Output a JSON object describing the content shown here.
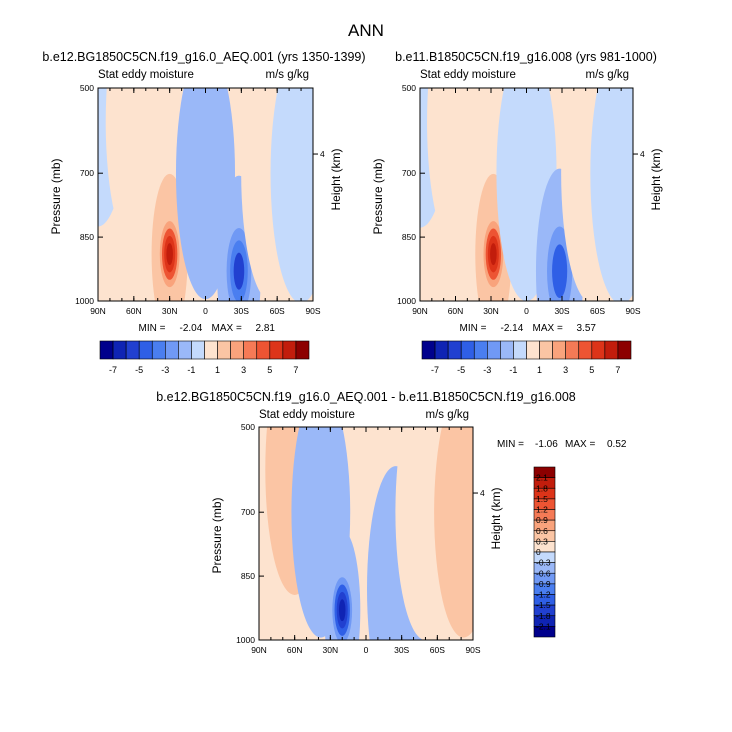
{
  "figure_title": "ANN",
  "colors": {
    "blue_scale": [
      "#00008c",
      "#0f24b4",
      "#2140d0",
      "#2f5fe6",
      "#4a7ef0",
      "#7099f5",
      "#9ab8f8",
      "#c4dafc"
    ],
    "near_zero": "#eff3fb",
    "red_scale": [
      "#fde3cf",
      "#fbc5a4",
      "#f9a37c",
      "#f57a56",
      "#ed5433",
      "#dd3419",
      "#c21d0c",
      "#8c0000"
    ]
  },
  "chart_data": [
    {
      "type": "heatmap",
      "plot_type": "latitude-pressure contour",
      "title": "b.e12.BG1850C5CN.f19_g16.0_AEQ.001 (yrs 1350-1399)",
      "left_label": "Stat eddy moisture",
      "right_label": "m/s g/kg",
      "ylabel": "Pressure (mb)",
      "ylabel_right": "Height (km)",
      "x_ticks": [
        "90N",
        "60N",
        "30N",
        "0",
        "30S",
        "60S",
        "90S"
      ],
      "y_ticks": [
        "500",
        "700",
        "850",
        "1000"
      ],
      "y_right_ticks": [
        "4"
      ],
      "xlim": [
        90,
        -90
      ],
      "ylim": [
        1000,
        500
      ],
      "min": -2.04,
      "max": 2.81,
      "min_label": "MIN =",
      "max_label": "MAX =",
      "min_text": "-2.04",
      "max_text": "2.81",
      "colorbar_labels": [
        "-7",
        "-5",
        "-3",
        "-1",
        "1",
        "3",
        "5",
        "7"
      ],
      "features": [
        {
          "lat": 90,
          "pressure": 520,
          "value": -0.3
        },
        {
          "lat": 58,
          "pressure": 580,
          "value": 0.3
        },
        {
          "lat": 30,
          "pressure": 890,
          "value": 2.81
        },
        {
          "lat": 0,
          "pressure": 700,
          "value": -0.5
        },
        {
          "lat": -28,
          "pressure": 930,
          "value": -2.04
        },
        {
          "lat": -55,
          "pressure": 700,
          "value": 0.4
        },
        {
          "lat": -80,
          "pressure": 700,
          "value": -0.3
        }
      ]
    },
    {
      "type": "heatmap",
      "plot_type": "latitude-pressure contour",
      "title": "b.e11.B1850C5CN.f19_g16.008 (yrs 981-1000)",
      "left_label": "Stat eddy moisture",
      "right_label": "m/s g/kg",
      "ylabel": "Pressure (mb)",
      "ylabel_right": "Height (km)",
      "x_ticks": [
        "90N",
        "60N",
        "30N",
        "0",
        "30S",
        "60S",
        "90S"
      ],
      "y_ticks": [
        "500",
        "700",
        "850",
        "1000"
      ],
      "y_right_ticks": [
        "4"
      ],
      "xlim": [
        90,
        -90
      ],
      "ylim": [
        1000,
        500
      ],
      "min": -2.14,
      "max": 3.57,
      "min_label": "MIN =",
      "max_label": "MAX =",
      "min_text": "-2.14",
      "max_text": "3.57",
      "colorbar_labels": [
        "-7",
        "-5",
        "-3",
        "-1",
        "1",
        "3",
        "5",
        "7"
      ],
      "features": [
        {
          "lat": 90,
          "pressure": 520,
          "value": -0.3
        },
        {
          "lat": 58,
          "pressure": 580,
          "value": 0.3
        },
        {
          "lat": 28,
          "pressure": 890,
          "value": 3.57
        },
        {
          "lat": 0,
          "pressure": 700,
          "value": -0.5
        },
        {
          "lat": -28,
          "pressure": 930,
          "value": -2.14
        },
        {
          "lat": -55,
          "pressure": 700,
          "value": 0.4
        },
        {
          "lat": -80,
          "pressure": 700,
          "value": -0.3
        }
      ]
    },
    {
      "type": "heatmap",
      "plot_type": "latitude-pressure contour (difference)",
      "title": "b.e12.BG1850C5CN.f19_g16.0_AEQ.001 - b.e11.B1850C5CN.f19_g16.008",
      "left_label": "Stat eddy moisture",
      "right_label": "m/s g/kg",
      "ylabel": "Pressure (mb)",
      "ylabel_right": "Height (km)",
      "x_ticks": [
        "90N",
        "60N",
        "30N",
        "0",
        "30S",
        "60S",
        "90S"
      ],
      "y_ticks": [
        "500",
        "700",
        "850",
        "1000"
      ],
      "y_right_ticks": [
        "4"
      ],
      "xlim": [
        90,
        -90
      ],
      "ylim": [
        1000,
        500
      ],
      "min": -1.06,
      "max": 0.52,
      "min_label": "MIN =",
      "max_label": "MAX =",
      "min_text": "-1.06",
      "max_text": "0.52",
      "colorbar_labels": [
        "2.1",
        "1.8",
        "1.5",
        "1.2",
        "0.9",
        "0.6",
        "0.3",
        "0",
        "-0.3",
        "-0.6",
        "-0.9",
        "-1.2",
        "-1.5",
        "-1.8",
        "-2.1"
      ],
      "features": [
        {
          "lat": 60,
          "pressure": 600,
          "value": 0.2
        },
        {
          "lat": 38,
          "pressure": 700,
          "value": -0.2
        },
        {
          "lat": 20,
          "pressure": 930,
          "value": -1.06
        },
        {
          "lat": -25,
          "pressure": 880,
          "value": -0.25
        },
        {
          "lat": -50,
          "pressure": 700,
          "value": 0.15
        },
        {
          "lat": -82,
          "pressure": 700,
          "value": 0.2
        }
      ]
    }
  ]
}
